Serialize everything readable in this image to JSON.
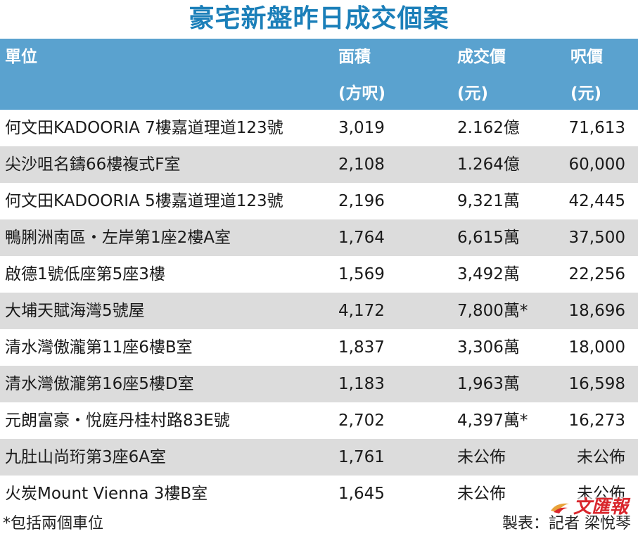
{
  "title": "豪宅新盤昨日成交個案",
  "header": {
    "col1": "單位",
    "col2_line1": "面積",
    "col2_line2": "(方呎)",
    "col3_line1": "成交價",
    "col3_line2": "(元)",
    "col4_line1": "呎價",
    "col4_line2": "(元)"
  },
  "rows": [
    {
      "unit": "何文田KADOORIA 7樓嘉道理道123號",
      "area": "3,019",
      "price": "2.162億",
      "psf": "71,613"
    },
    {
      "unit": "尖沙咀名鑄66樓複式F室",
      "area": "2,108",
      "price": "1.264億",
      "psf": "60,000"
    },
    {
      "unit": "何文田KADOORIA 5樓嘉道理道123號",
      "area": "2,196",
      "price": "9,321萬",
      "psf": "42,445"
    },
    {
      "unit": "鴨脷洲南區・左岸第1座2樓A室",
      "area": "1,764",
      "price": "6,615萬",
      "psf": "37,500"
    },
    {
      "unit": "啟德1號低座第5座3樓",
      "area": "1,569",
      "price": "3,492萬",
      "psf": "22,256"
    },
    {
      "unit": "大埔天賦海灣5號屋",
      "area": "4,172",
      "price": "7,800萬*",
      "psf": "18,696"
    },
    {
      "unit": "清水灣傲瀧第11座6樓B室",
      "area": "1,837",
      "price": "3,306萬",
      "psf": "18,000"
    },
    {
      "unit": "清水灣傲瀧第16座5樓D室",
      "area": "1,183",
      "price": "1,963萬",
      "psf": "16,598"
    },
    {
      "unit": "元朗富豪・悅庭丹桂村路83E號",
      "area": "2,702",
      "price": "4,397萬*",
      "psf": "16,273"
    },
    {
      "unit": "九肚山尚珩第3座6A室",
      "area": "1,761",
      "price": "未公佈",
      "psf": "未公佈"
    },
    {
      "unit": "火炭Mount Vienna 3樓B室",
      "area": "1,645",
      "price": "未公佈",
      "psf": "未公佈"
    }
  ],
  "footer": {
    "note": "*包括兩個車位",
    "credit": "製表：記者 梁悅琴"
  },
  "logo": {
    "text": "文匯報",
    "color": "#d9262c",
    "icon": "wenweipo-logo-icon"
  },
  "colors": {
    "title": "#1b7fb9",
    "header_bg": "#5aa2cf",
    "row_alt": "#dcdcdc"
  }
}
